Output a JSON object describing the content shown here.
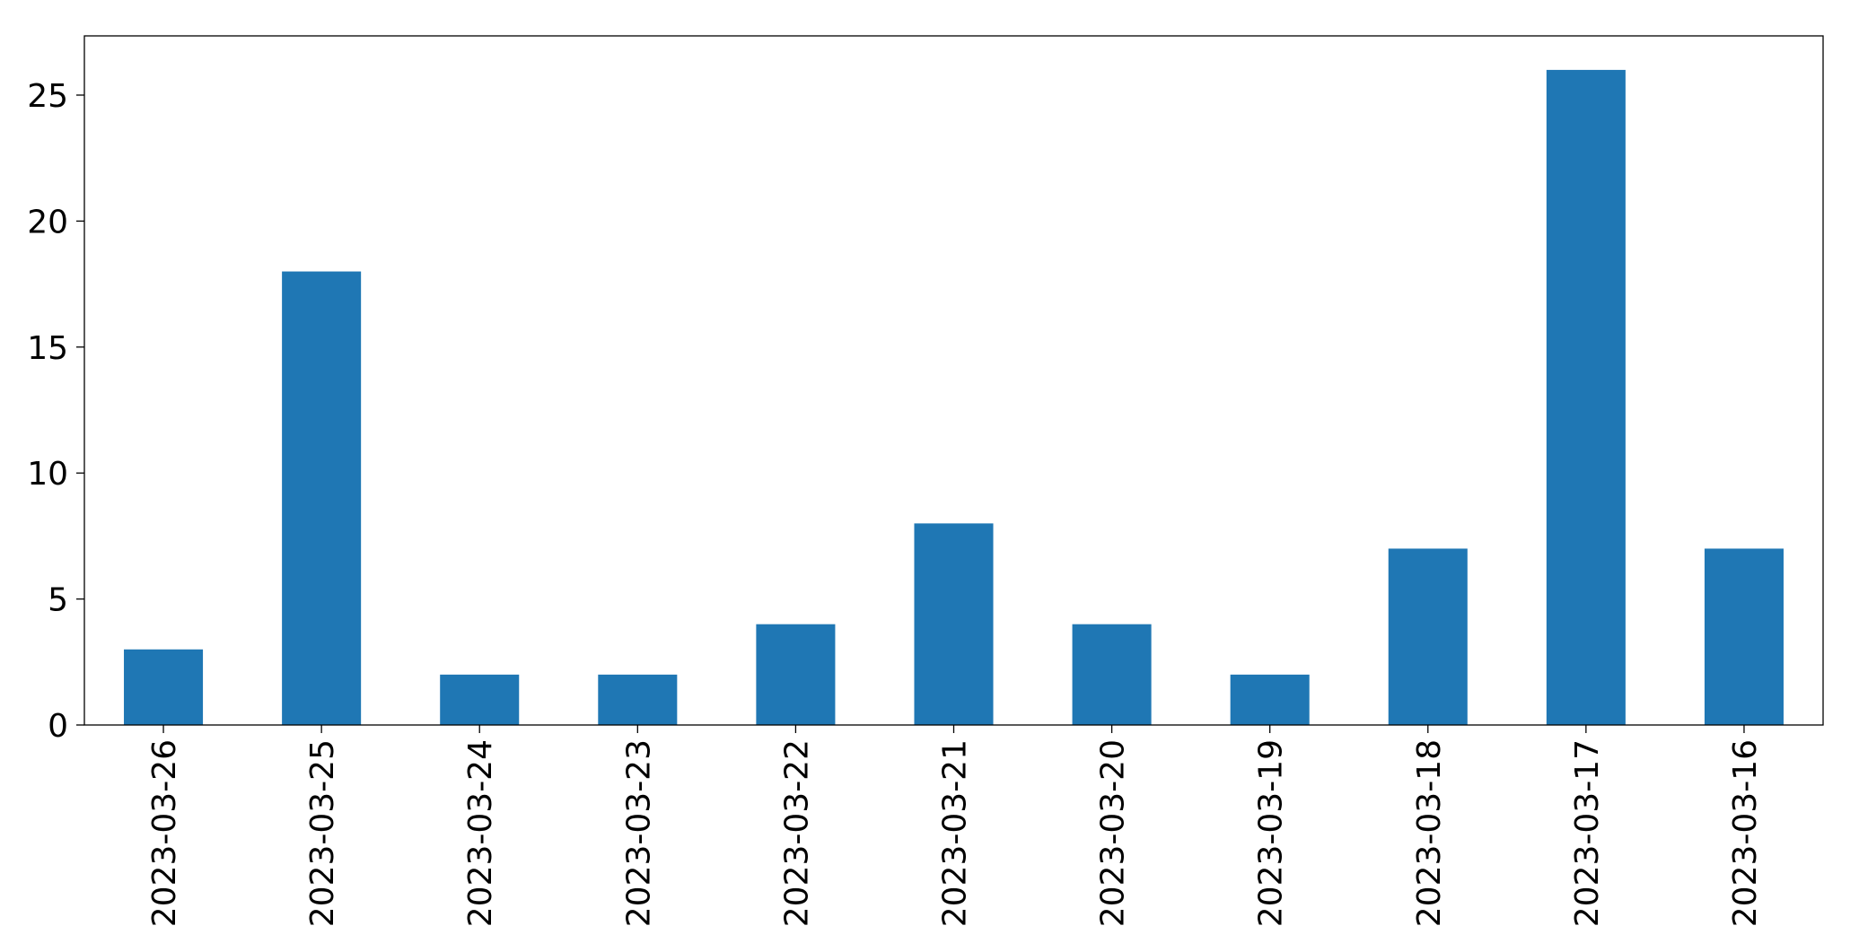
{
  "chart_data": {
    "type": "bar",
    "categories": [
      "2023-03-26",
      "2023-03-25",
      "2023-03-24",
      "2023-03-23",
      "2023-03-22",
      "2023-03-21",
      "2023-03-20",
      "2023-03-19",
      "2023-03-18",
      "2023-03-17",
      "2023-03-16"
    ],
    "values": [
      3,
      18,
      2,
      2,
      4,
      8,
      4,
      2,
      7,
      26,
      7
    ],
    "color": "#1f77b4",
    "ylim": [
      0,
      27.35
    ],
    "yticks": [
      0,
      5,
      10,
      15,
      20,
      25
    ],
    "grid": false
  }
}
